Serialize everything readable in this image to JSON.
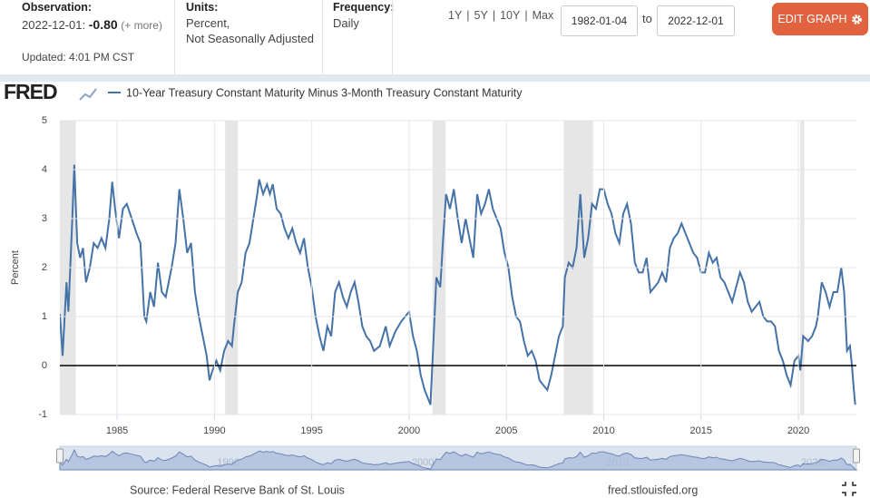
{
  "header": {
    "observation_label": "Observation:",
    "observation_date": "2022-12-01:",
    "observation_value": "-0.80",
    "observation_more": "(+ more)",
    "updated": "Updated: 4:01 PM CST",
    "units_label": "Units:",
    "units_line1": "Percent,",
    "units_line2": "Not Seasonally Adjusted",
    "frequency_label": "Frequency:",
    "frequency": "Daily",
    "periods": [
      "1Y",
      "5Y",
      "10Y",
      "Max"
    ],
    "start_date": "1982-01-04",
    "to": "to",
    "end_date": "2022-12-01",
    "edit_button": "EDIT GRAPH"
  },
  "logo": "FRED",
  "footer": {
    "source": "Source: Federal Reserve Bank of St. Louis",
    "site": "fred.stlouisfed.org"
  },
  "chart_data": {
    "type": "line",
    "y_label": "Percent",
    "x": [
      1982.06,
      1982.2,
      1982.4,
      1982.5,
      1982.7,
      1982.8,
      1982.95,
      1983.1,
      1983.25,
      1983.4,
      1983.6,
      1983.8,
      1984.0,
      1984.2,
      1984.4,
      1984.6,
      1984.75,
      1984.9,
      1985.1,
      1985.3,
      1985.5,
      1985.75,
      1986.0,
      1986.2,
      1986.4,
      1986.5,
      1986.7,
      1986.9,
      1987.1,
      1987.3,
      1987.5,
      1987.8,
      1988.0,
      1988.2,
      1988.4,
      1988.6,
      1988.8,
      1989.0,
      1989.2,
      1989.4,
      1989.6,
      1989.75,
      1989.9,
      1990.1,
      1990.3,
      1990.5,
      1990.7,
      1990.9,
      1991.0,
      1991.2,
      1991.4,
      1991.6,
      1991.8,
      1992.0,
      1992.2,
      1992.3,
      1992.5,
      1992.7,
      1992.85,
      1993.0,
      1993.2,
      1993.4,
      1993.6,
      1993.8,
      1994.0,
      1994.2,
      1994.4,
      1994.6,
      1994.8,
      1995.0,
      1995.2,
      1995.4,
      1995.6,
      1995.8,
      1996.0,
      1996.2,
      1996.4,
      1996.6,
      1996.8,
      1997.0,
      1997.2,
      1997.4,
      1997.6,
      1997.8,
      1998.0,
      1998.2,
      1998.5,
      1998.8,
      1999.0,
      1999.3,
      1999.6,
      1999.8,
      2000.0,
      2000.2,
      2000.4,
      2000.6,
      2000.8,
      2001.0,
      2001.1,
      2001.25,
      2001.4,
      2001.6,
      2001.75,
      2001.9,
      2002.1,
      2002.3,
      2002.5,
      2002.7,
      2002.9,
      2003.1,
      2003.3,
      2003.5,
      2003.7,
      2003.9,
      2004.1,
      2004.3,
      2004.5,
      2004.7,
      2004.9,
      2005.1,
      2005.3,
      2005.5,
      2005.7,
      2005.9,
      2006.1,
      2006.3,
      2006.5,
      2006.7,
      2006.9,
      2007.1,
      2007.3,
      2007.5,
      2007.7,
      2007.9,
      2008.0,
      2008.2,
      2008.4,
      2008.6,
      2008.8,
      2009.0,
      2009.2,
      2009.4,
      2009.6,
      2009.8,
      2010.0,
      2010.2,
      2010.4,
      2010.6,
      2010.8,
      2011.0,
      2011.2,
      2011.4,
      2011.6,
      2011.8,
      2012.0,
      2012.2,
      2012.4,
      2012.6,
      2012.8,
      2013.0,
      2013.2,
      2013.4,
      2013.6,
      2013.8,
      2014.0,
      2014.2,
      2014.4,
      2014.6,
      2014.8,
      2015.0,
      2015.2,
      2015.4,
      2015.6,
      2015.8,
      2016.0,
      2016.2,
      2016.4,
      2016.6,
      2016.8,
      2017.0,
      2017.2,
      2017.4,
      2017.6,
      2017.8,
      2018.0,
      2018.2,
      2018.4,
      2018.6,
      2018.8,
      2019.0,
      2019.2,
      2019.4,
      2019.6,
      2019.8,
      2020.0,
      2020.1,
      2020.25,
      2020.5,
      2020.7,
      2020.9,
      2021.0,
      2021.2,
      2021.4,
      2021.6,
      2021.8,
      2022.0,
      2022.2,
      2022.35,
      2022.5,
      2022.65,
      2022.75,
      2022.85,
      2022.92
    ],
    "series": [
      {
        "name": "10-Year Treasury Constant Maturity Minus 3-Month Treasury Constant Maturity",
        "color": "#4572a7",
        "values": [
          1.05,
          0.2,
          1.7,
          1.1,
          3.0,
          4.1,
          2.5,
          2.2,
          2.4,
          1.7,
          2.0,
          2.5,
          2.4,
          2.6,
          2.4,
          3.0,
          3.75,
          3.2,
          2.6,
          3.2,
          3.3,
          3.0,
          2.7,
          2.5,
          1.0,
          0.9,
          1.5,
          1.2,
          2.1,
          1.5,
          1.4,
          2.0,
          2.5,
          3.6,
          3.0,
          2.3,
          2.5,
          1.5,
          1.0,
          0.6,
          0.2,
          -0.3,
          -0.1,
          0.1,
          -0.1,
          0.3,
          0.5,
          0.4,
          0.8,
          1.5,
          1.7,
          2.3,
          2.5,
          3.0,
          3.5,
          3.8,
          3.5,
          3.7,
          3.5,
          3.7,
          3.2,
          3.1,
          2.8,
          2.6,
          2.8,
          2.5,
          2.3,
          2.6,
          2.0,
          1.6,
          1.0,
          0.6,
          0.3,
          0.8,
          0.6,
          1.5,
          1.7,
          1.4,
          1.2,
          1.5,
          1.7,
          1.3,
          0.8,
          0.6,
          0.5,
          0.3,
          0.4,
          0.8,
          0.4,
          0.7,
          0.9,
          1.0,
          1.1,
          0.6,
          0.3,
          -0.2,
          -0.5,
          -0.7,
          -0.8,
          0.5,
          1.8,
          1.6,
          2.6,
          3.5,
          3.2,
          3.6,
          3.0,
          2.5,
          3.0,
          2.6,
          2.2,
          3.5,
          3.1,
          3.3,
          3.6,
          3.2,
          3.0,
          2.8,
          2.3,
          2.0,
          1.4,
          1.0,
          0.9,
          0.5,
          0.2,
          0.3,
          0.1,
          -0.3,
          -0.4,
          -0.5,
          -0.2,
          0.2,
          0.6,
          0.8,
          1.8,
          2.1,
          2.0,
          2.4,
          3.5,
          2.2,
          2.6,
          3.3,
          3.2,
          3.6,
          3.6,
          3.3,
          3.1,
          2.7,
          2.5,
          3.1,
          3.3,
          2.9,
          2.1,
          1.9,
          1.9,
          2.2,
          1.5,
          1.6,
          1.7,
          1.9,
          1.7,
          2.4,
          2.6,
          2.7,
          2.9,
          2.7,
          2.5,
          2.3,
          2.2,
          1.9,
          1.9,
          2.3,
          2.1,
          2.2,
          1.8,
          1.7,
          1.5,
          1.3,
          1.6,
          1.9,
          1.7,
          1.3,
          1.1,
          1.2,
          1.3,
          1.0,
          0.9,
          0.9,
          0.8,
          0.3,
          0.1,
          -0.2,
          -0.4,
          0.1,
          0.2,
          -0.1,
          0.6,
          0.5,
          0.6,
          0.8,
          1.0,
          1.7,
          1.5,
          1.2,
          1.5,
          1.5,
          2.0,
          1.5,
          0.3,
          0.4,
          0.0,
          -0.5,
          -0.8
        ]
      }
    ],
    "xlim": [
      1982.06,
      2022.98
    ],
    "xticks": [
      1985,
      1990,
      1995,
      2000,
      2005,
      2010,
      2015,
      2020
    ],
    "ylim": [
      -1,
      5
    ],
    "yticks": [
      -1,
      0,
      1,
      2,
      3,
      4,
      5
    ],
    "grid": true,
    "zero_line": true,
    "recessions": [
      [
        1981.55,
        1982.88
      ],
      [
        1990.55,
        1991.2
      ],
      [
        2001.2,
        2001.88
      ],
      [
        2007.95,
        2009.45
      ],
      [
        2020.1,
        2020.3
      ]
    ],
    "recession_color": "#e6e6e6",
    "navigator_xticks": [
      1990,
      2000,
      2010,
      2020
    ]
  }
}
